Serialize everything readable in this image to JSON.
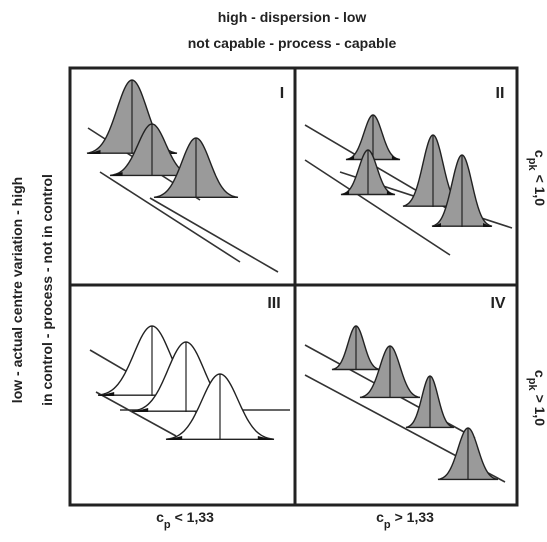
{
  "header": {
    "line1": "high  -  dispersion  -  low",
    "line2": "not capable  -  process  -  capable"
  },
  "left": {
    "outer": "low  -  actual centre variation  -  high",
    "inner": "in control  -  process  -  not in control"
  },
  "right": [
    {
      "symbol": "c",
      "subscript": "pk",
      "relation": "< 1,0"
    },
    {
      "symbol": "c",
      "subscript": "pk",
      "relation": "> 1,0"
    }
  ],
  "bottom": [
    {
      "symbol": "c",
      "subscript": "p",
      "relation": "< 1,33"
    },
    {
      "symbol": "c",
      "subscript": "p",
      "relation": "> 1,33"
    }
  ],
  "quadrants": [
    {
      "label": "I"
    },
    {
      "label": "II"
    },
    {
      "label": "III"
    },
    {
      "label": "IV"
    }
  ]
}
